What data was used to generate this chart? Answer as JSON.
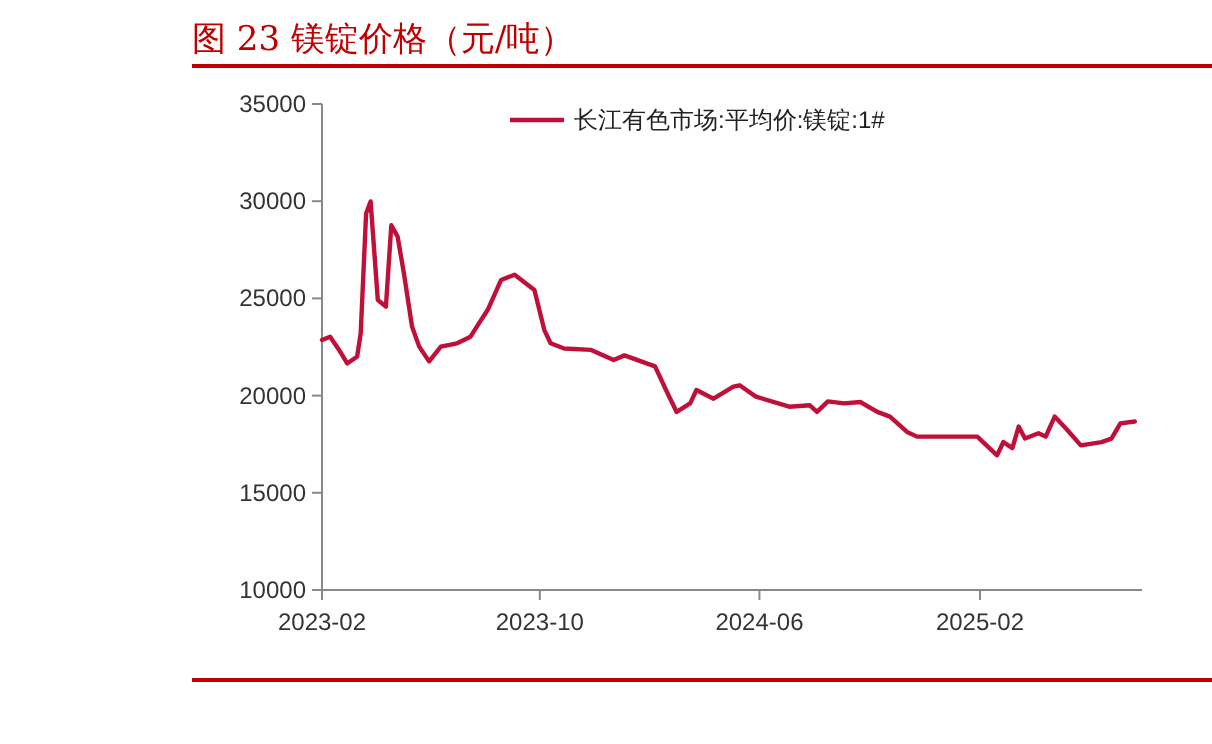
{
  "chart_data": {
    "type": "line",
    "title": "图 23 镁锭价格（元/吨）",
    "x": [
      "2023-02-01",
      "2023-02-10",
      "2023-02-20",
      "2023-03-01",
      "2023-03-12",
      "2023-03-16",
      "2023-03-22",
      "2023-03-27",
      "2023-04-04",
      "2023-04-13",
      "2023-04-19",
      "2023-04-26",
      "2023-05-03",
      "2023-05-12",
      "2023-05-20",
      "2023-05-31",
      "2023-06-13",
      "2023-07-01",
      "2023-07-16",
      "2023-07-23",
      "2023-08-04",
      "2023-08-19",
      "2023-09-03",
      "2023-09-25",
      "2023-10-06",
      "2023-10-13",
      "2023-10-28",
      "2023-11-27",
      "2023-12-22",
      "2024-01-03",
      "2024-02-06",
      "2024-02-20",
      "2024-03-01",
      "2024-03-16",
      "2024-03-23",
      "2024-04-11",
      "2024-05-03",
      "2024-05-10",
      "2024-05-28",
      "2024-07-04",
      "2024-07-27",
      "2024-08-04",
      "2024-08-16",
      "2024-09-03",
      "2024-09-21",
      "2024-10-10",
      "2024-10-24",
      "2024-11-12",
      "2024-11-23",
      "2025-01-29",
      "2025-02-20",
      "2025-02-27",
      "2025-03-09",
      "2025-03-16",
      "2025-03-23",
      "2025-04-07",
      "2025-04-15",
      "2025-04-25",
      "2025-05-09",
      "2025-05-24",
      "2025-06-16",
      "2025-06-27",
      "2025-07-07",
      "2025-07-23"
    ],
    "series": [
      {
        "name": "长江有色市场:平均价:镁锭:1#",
        "color": "#c0103a",
        "values": [
          22860,
          23030,
          22350,
          21660,
          22000,
          23200,
          29370,
          29990,
          24920,
          24580,
          28760,
          28180,
          26290,
          23550,
          22520,
          21760,
          22520,
          22690,
          23030,
          23550,
          24400,
          25950,
          26220,
          25430,
          23370,
          22690,
          22420,
          22350,
          21830,
          22070,
          21500,
          20110,
          19160,
          19600,
          20290,
          19840,
          20460,
          20530,
          19950,
          19430,
          19500,
          19160,
          19700,
          19600,
          19670,
          19160,
          18920,
          18130,
          17890,
          17890,
          16930,
          17610,
          17300,
          18410,
          17790,
          18060,
          17890,
          18920,
          18230,
          17440,
          17610,
          17790,
          18570,
          18670
        ]
      }
    ],
    "xlim": [
      "2023-02-01",
      "2025-07-31"
    ],
    "xticks": [
      {
        "value": "2023-02-01",
        "label": "2023-02"
      },
      {
        "value": "2023-10-01",
        "label": "2023-10"
      },
      {
        "value": "2024-06-01",
        "label": "2024-06"
      },
      {
        "value": "2025-02-01",
        "label": "2025-02"
      }
    ],
    "ylim": [
      10000,
      35000
    ],
    "yticks": [
      10000,
      15000,
      20000,
      25000,
      30000,
      35000
    ],
    "legend": "top",
    "grid": false
  }
}
